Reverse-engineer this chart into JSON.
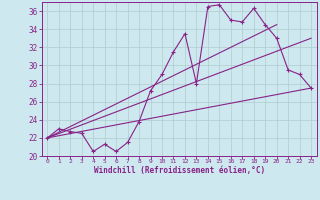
{
  "xlabel": "Windchill (Refroidissement éolien,°C)",
  "xlim": [
    -0.5,
    23.5
  ],
  "ylim": [
    20,
    37
  ],
  "yticks": [
    20,
    22,
    24,
    26,
    28,
    30,
    32,
    34,
    36
  ],
  "xticks": [
    0,
    1,
    2,
    3,
    4,
    5,
    6,
    7,
    8,
    9,
    10,
    11,
    12,
    13,
    14,
    15,
    16,
    17,
    18,
    19,
    20,
    21,
    22,
    23
  ],
  "background_color": "#cde8ee",
  "grid_color": "#b0cccc",
  "line_color": "#882288",
  "line1_x": [
    0,
    1,
    2,
    3,
    4,
    5,
    6,
    7,
    8,
    9,
    10,
    11,
    12,
    13,
    14,
    15,
    16,
    17,
    18,
    19,
    20,
    21,
    22,
    23
  ],
  "line1_y": [
    22.0,
    23.0,
    22.7,
    22.5,
    20.5,
    21.3,
    20.5,
    21.5,
    23.8,
    27.2,
    29.0,
    31.5,
    33.5,
    28.0,
    36.5,
    36.7,
    35.0,
    34.8,
    36.3,
    34.5,
    33.0,
    29.5,
    29.0,
    27.5
  ],
  "line2_x": [
    0,
    23
  ],
  "line2_y": [
    22.0,
    27.5
  ],
  "line3_x": [
    0,
    20
  ],
  "line3_y": [
    22.0,
    34.5
  ],
  "line4_x": [
    0,
    23
  ],
  "line4_y": [
    22.0,
    33.0
  ]
}
